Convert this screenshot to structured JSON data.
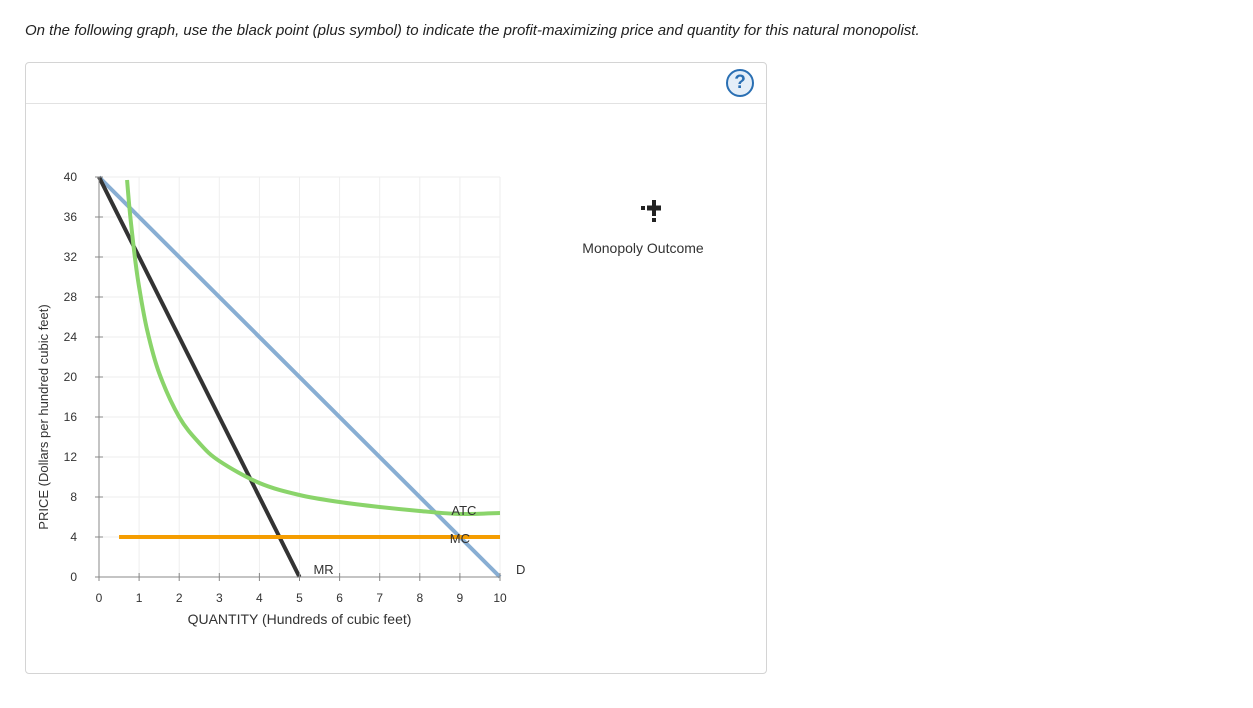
{
  "instructions": "On the following graph, use the black point (plus symbol) to indicate the profit-maximizing price and quantity for this natural monopolist.",
  "help_label": "?",
  "palette": {
    "label": "Monopoly Outcome",
    "icon": "plus-point-icon",
    "color": "#222222"
  },
  "colors": {
    "demand": "#88aed3",
    "mr": "#333333",
    "atc": "#8ad46a",
    "mc": "#f59d00",
    "grid": "#eeeeee",
    "axis": "#888888"
  },
  "chart_data": {
    "type": "line",
    "xlabel": "QUANTITY (Hundreds of cubic feet)",
    "ylabel": "PRICE (Dollars per hundred cubic feet)",
    "xlim": [
      0,
      10
    ],
    "ylim": [
      0,
      40
    ],
    "xticks": [
      0,
      1,
      2,
      3,
      4,
      5,
      6,
      7,
      8,
      9,
      10
    ],
    "yticks": [
      0,
      4,
      8,
      12,
      16,
      20,
      24,
      28,
      32,
      36,
      40
    ],
    "grid": true,
    "series": [
      {
        "name": "D",
        "color": "#88aed3",
        "x": [
          0,
          10
        ],
        "y": [
          40,
          0
        ]
      },
      {
        "name": "MR",
        "color": "#333333",
        "x": [
          0,
          5
        ],
        "y": [
          40,
          0
        ]
      },
      {
        "name": "ATC",
        "color": "#8ad46a",
        "x": [
          0.7,
          0.75,
          0.8,
          0.9,
          1.0,
          1.2,
          1.5,
          2.0,
          2.5,
          3.0,
          4.0,
          5.0,
          6.0,
          7.0,
          8.0,
          9.0,
          10.0
        ],
        "y": [
          39.7,
          37.3,
          35.3,
          31.8,
          29.0,
          24.7,
          20.4,
          16.0,
          13.4,
          11.6,
          9.4,
          8.2,
          7.5,
          7.0,
          6.6,
          6.3,
          6.4
        ]
      },
      {
        "name": "MC",
        "color": "#f59d00",
        "x": [
          0.5,
          10
        ],
        "y": [
          4,
          4
        ]
      }
    ]
  }
}
